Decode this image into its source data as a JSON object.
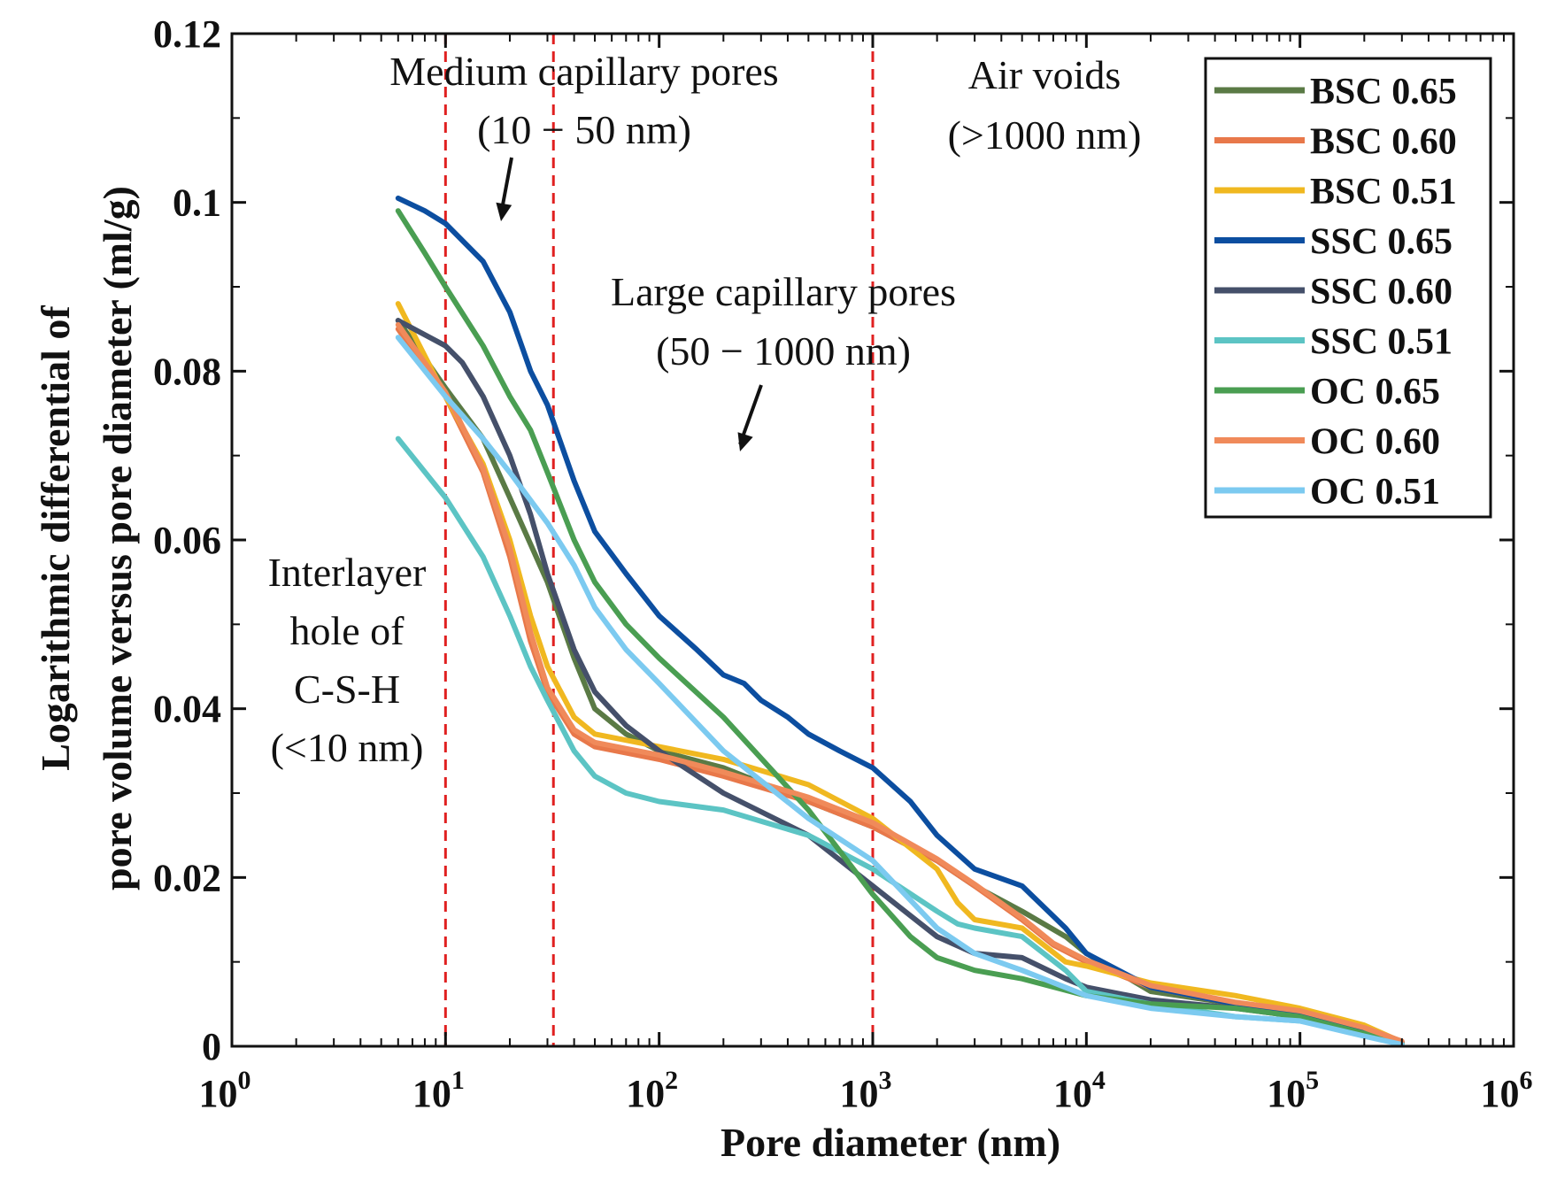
{
  "chart_data": {
    "type": "line",
    "title": "",
    "xlabel": "Pore diameter (nm)",
    "ylabel": [
      "Logarithmic differential of",
      "pore volume versus pore diameter (ml/g)"
    ],
    "xscale": "log",
    "xlim": [
      1,
      1000000
    ],
    "ylim": [
      0,
      0.12
    ],
    "x_ticks": [
      {
        "value": 1,
        "base": "10",
        "exp": "0"
      },
      {
        "value": 10,
        "base": "10",
        "exp": "1"
      },
      {
        "value": 100,
        "base": "10",
        "exp": "2"
      },
      {
        "value": 1000,
        "base": "10",
        "exp": "3"
      },
      {
        "value": 10000,
        "base": "10",
        "exp": "4"
      },
      {
        "value": 100000,
        "base": "10",
        "exp": "5"
      },
      {
        "value": 1000000,
        "base": "10",
        "exp": "6"
      }
    ],
    "y_ticks": [
      {
        "value": 0,
        "label": "0"
      },
      {
        "value": 0.02,
        "label": "0.02"
      },
      {
        "value": 0.04,
        "label": "0.04"
      },
      {
        "value": 0.06,
        "label": "0.06"
      },
      {
        "value": 0.08,
        "label": "0.08"
      },
      {
        "value": 0.1,
        "label": "0.1"
      },
      {
        "value": 0.12,
        "label": "0.12"
      }
    ],
    "grid": false,
    "legend_position": "top-right",
    "reference_lines": [
      10,
      32,
      1000
    ],
    "reference_line_color": "#e02020",
    "annotations": [
      {
        "lines": [
          "Medium capillary pores",
          "(10 − 50 nm)"
        ],
        "arrow": true
      },
      {
        "lines": [
          "Air voids",
          "(>1000 nm)"
        ],
        "arrow": false
      },
      {
        "lines": [
          "Large capillary pores",
          "(50 − 1000 nm)"
        ],
        "arrow": true
      },
      {
        "lines": [
          "Interlayer",
          "hole of",
          "C-S-H",
          "(<10 nm)"
        ],
        "arrow": false
      }
    ],
    "series": [
      {
        "name": "BSC 0.65",
        "color": "#5a7a45",
        "points": [
          [
            6,
            0.086
          ],
          [
            10,
            0.078
          ],
          [
            15,
            0.072
          ],
          [
            20,
            0.065
          ],
          [
            30,
            0.055
          ],
          [
            40,
            0.046
          ],
          [
            50,
            0.04
          ],
          [
            70,
            0.037
          ],
          [
            100,
            0.035
          ],
          [
            200,
            0.033
          ],
          [
            500,
            0.029
          ],
          [
            1000,
            0.026
          ],
          [
            2000,
            0.022
          ],
          [
            3000,
            0.019
          ],
          [
            5000,
            0.016
          ],
          [
            8000,
            0.013
          ],
          [
            10000,
            0.011
          ],
          [
            20000,
            0.0065
          ],
          [
            50000,
            0.005
          ],
          [
            100000,
            0.004
          ],
          [
            200000,
            0.002
          ],
          [
            300000,
            0.0005
          ]
        ]
      },
      {
        "name": "BSC 0.60",
        "color": "#e8784a",
        "points": [
          [
            6,
            0.085
          ],
          [
            10,
            0.077
          ],
          [
            15,
            0.068
          ],
          [
            20,
            0.058
          ],
          [
            25,
            0.048
          ],
          [
            30,
            0.042
          ],
          [
            40,
            0.037
          ],
          [
            50,
            0.0355
          ],
          [
            100,
            0.034
          ],
          [
            200,
            0.032
          ],
          [
            500,
            0.029
          ],
          [
            1000,
            0.026
          ],
          [
            2000,
            0.022
          ],
          [
            3000,
            0.019
          ],
          [
            5000,
            0.015
          ],
          [
            7000,
            0.012
          ],
          [
            10000,
            0.01
          ],
          [
            20000,
            0.007
          ],
          [
            50000,
            0.005
          ],
          [
            100000,
            0.004
          ],
          [
            200000,
            0.002
          ],
          [
            300000,
            0.0005
          ]
        ]
      },
      {
        "name": "BSC 0.51",
        "color": "#f0b820",
        "points": [
          [
            6,
            0.088
          ],
          [
            10,
            0.077
          ],
          [
            15,
            0.069
          ],
          [
            20,
            0.06
          ],
          [
            25,
            0.051
          ],
          [
            30,
            0.045
          ],
          [
            40,
            0.039
          ],
          [
            50,
            0.037
          ],
          [
            100,
            0.0355
          ],
          [
            200,
            0.034
          ],
          [
            500,
            0.031
          ],
          [
            1000,
            0.027
          ],
          [
            2000,
            0.021
          ],
          [
            2500,
            0.017
          ],
          [
            3000,
            0.015
          ],
          [
            5000,
            0.014
          ],
          [
            8000,
            0.01
          ],
          [
            10000,
            0.0095
          ],
          [
            20000,
            0.0075
          ],
          [
            50000,
            0.006
          ],
          [
            100000,
            0.0045
          ],
          [
            200000,
            0.0025
          ],
          [
            300000,
            0.0005
          ]
        ]
      },
      {
        "name": "SSC 0.65",
        "color": "#0c4ea0",
        "points": [
          [
            6,
            0.1005
          ],
          [
            8,
            0.099
          ],
          [
            10,
            0.0975
          ],
          [
            15,
            0.093
          ],
          [
            20,
            0.087
          ],
          [
            25,
            0.08
          ],
          [
            30,
            0.076
          ],
          [
            40,
            0.067
          ],
          [
            50,
            0.061
          ],
          [
            70,
            0.056
          ],
          [
            100,
            0.051
          ],
          [
            150,
            0.047
          ],
          [
            200,
            0.044
          ],
          [
            250,
            0.043
          ],
          [
            300,
            0.041
          ],
          [
            400,
            0.039
          ],
          [
            500,
            0.037
          ],
          [
            700,
            0.035
          ],
          [
            1000,
            0.033
          ],
          [
            1500,
            0.029
          ],
          [
            2000,
            0.025
          ],
          [
            3000,
            0.021
          ],
          [
            5000,
            0.019
          ],
          [
            8000,
            0.014
          ],
          [
            10000,
            0.011
          ],
          [
            20000,
            0.007
          ],
          [
            50000,
            0.005
          ],
          [
            100000,
            0.004
          ],
          [
            200000,
            0.002
          ],
          [
            300000,
            0.0005
          ]
        ]
      },
      {
        "name": "SSC 0.60",
        "color": "#45506a",
        "points": [
          [
            6,
            0.086
          ],
          [
            10,
            0.083
          ],
          [
            12,
            0.081
          ],
          [
            15,
            0.077
          ],
          [
            20,
            0.07
          ],
          [
            25,
            0.063
          ],
          [
            30,
            0.056
          ],
          [
            40,
            0.047
          ],
          [
            50,
            0.042
          ],
          [
            70,
            0.038
          ],
          [
            100,
            0.035
          ],
          [
            200,
            0.03
          ],
          [
            500,
            0.025
          ],
          [
            1000,
            0.019
          ],
          [
            2000,
            0.013
          ],
          [
            3000,
            0.011
          ],
          [
            5000,
            0.0105
          ],
          [
            8000,
            0.008
          ],
          [
            10000,
            0.007
          ],
          [
            20000,
            0.0055
          ],
          [
            50000,
            0.0045
          ],
          [
            100000,
            0.0035
          ],
          [
            200000,
            0.0015
          ],
          [
            300000,
            0.0003
          ]
        ]
      },
      {
        "name": "SSC 0.51",
        "color": "#5cc4c4",
        "points": [
          [
            6,
            0.072
          ],
          [
            10,
            0.065
          ],
          [
            15,
            0.058
          ],
          [
            20,
            0.051
          ],
          [
            25,
            0.045
          ],
          [
            30,
            0.041
          ],
          [
            40,
            0.035
          ],
          [
            50,
            0.032
          ],
          [
            70,
            0.03
          ],
          [
            100,
            0.029
          ],
          [
            200,
            0.028
          ],
          [
            500,
            0.025
          ],
          [
            1000,
            0.021
          ],
          [
            2000,
            0.016
          ],
          [
            2500,
            0.0145
          ],
          [
            3000,
            0.014
          ],
          [
            5000,
            0.013
          ],
          [
            8000,
            0.009
          ],
          [
            10000,
            0.0065
          ],
          [
            20000,
            0.005
          ],
          [
            50000,
            0.0035
          ],
          [
            100000,
            0.003
          ],
          [
            200000,
            0.0015
          ],
          [
            300000,
            0.0003
          ]
        ]
      },
      {
        "name": "OC 0.65",
        "color": "#4a9e52",
        "points": [
          [
            6,
            0.099
          ],
          [
            8,
            0.094
          ],
          [
            10,
            0.09
          ],
          [
            15,
            0.083
          ],
          [
            20,
            0.077
          ],
          [
            25,
            0.073
          ],
          [
            30,
            0.068
          ],
          [
            40,
            0.06
          ],
          [
            50,
            0.055
          ],
          [
            70,
            0.05
          ],
          [
            100,
            0.046
          ],
          [
            200,
            0.039
          ],
          [
            500,
            0.028
          ],
          [
            1000,
            0.018
          ],
          [
            1500,
            0.013
          ],
          [
            2000,
            0.0105
          ],
          [
            3000,
            0.009
          ],
          [
            5000,
            0.008
          ],
          [
            10000,
            0.006
          ],
          [
            20000,
            0.005
          ],
          [
            50000,
            0.0045
          ],
          [
            100000,
            0.0035
          ],
          [
            200000,
            0.0015
          ],
          [
            300000,
            0.0003
          ]
        ]
      },
      {
        "name": "OC 0.60",
        "color": "#f08a5a",
        "points": [
          [
            6,
            0.0855
          ],
          [
            10,
            0.0775
          ],
          [
            15,
            0.0685
          ],
          [
            20,
            0.059
          ],
          [
            25,
            0.049
          ],
          [
            30,
            0.0425
          ],
          [
            40,
            0.0375
          ],
          [
            50,
            0.036
          ],
          [
            100,
            0.0345
          ],
          [
            200,
            0.0325
          ],
          [
            500,
            0.0295
          ],
          [
            1000,
            0.0265
          ],
          [
            2000,
            0.0222
          ],
          [
            3000,
            0.0192
          ],
          [
            5000,
            0.0152
          ],
          [
            7000,
            0.0122
          ],
          [
            10000,
            0.0102
          ],
          [
            20000,
            0.0072
          ],
          [
            50000,
            0.0052
          ],
          [
            100000,
            0.0042
          ],
          [
            200000,
            0.0022
          ],
          [
            300000,
            0.0006
          ]
        ]
      },
      {
        "name": "OC 0.51",
        "color": "#7ccaf0",
        "points": [
          [
            6,
            0.084
          ],
          [
            10,
            0.077
          ],
          [
            15,
            0.072
          ],
          [
            20,
            0.068
          ],
          [
            30,
            0.062
          ],
          [
            40,
            0.057
          ],
          [
            50,
            0.052
          ],
          [
            70,
            0.047
          ],
          [
            100,
            0.043
          ],
          [
            200,
            0.035
          ],
          [
            500,
            0.027
          ],
          [
            1000,
            0.022
          ],
          [
            2000,
            0.014
          ],
          [
            3000,
            0.011
          ],
          [
            5000,
            0.009
          ],
          [
            10000,
            0.006
          ],
          [
            20000,
            0.0045
          ],
          [
            50000,
            0.0035
          ],
          [
            100000,
            0.003
          ],
          [
            200000,
            0.0012
          ],
          [
            300000,
            0.0002
          ]
        ]
      }
    ]
  }
}
